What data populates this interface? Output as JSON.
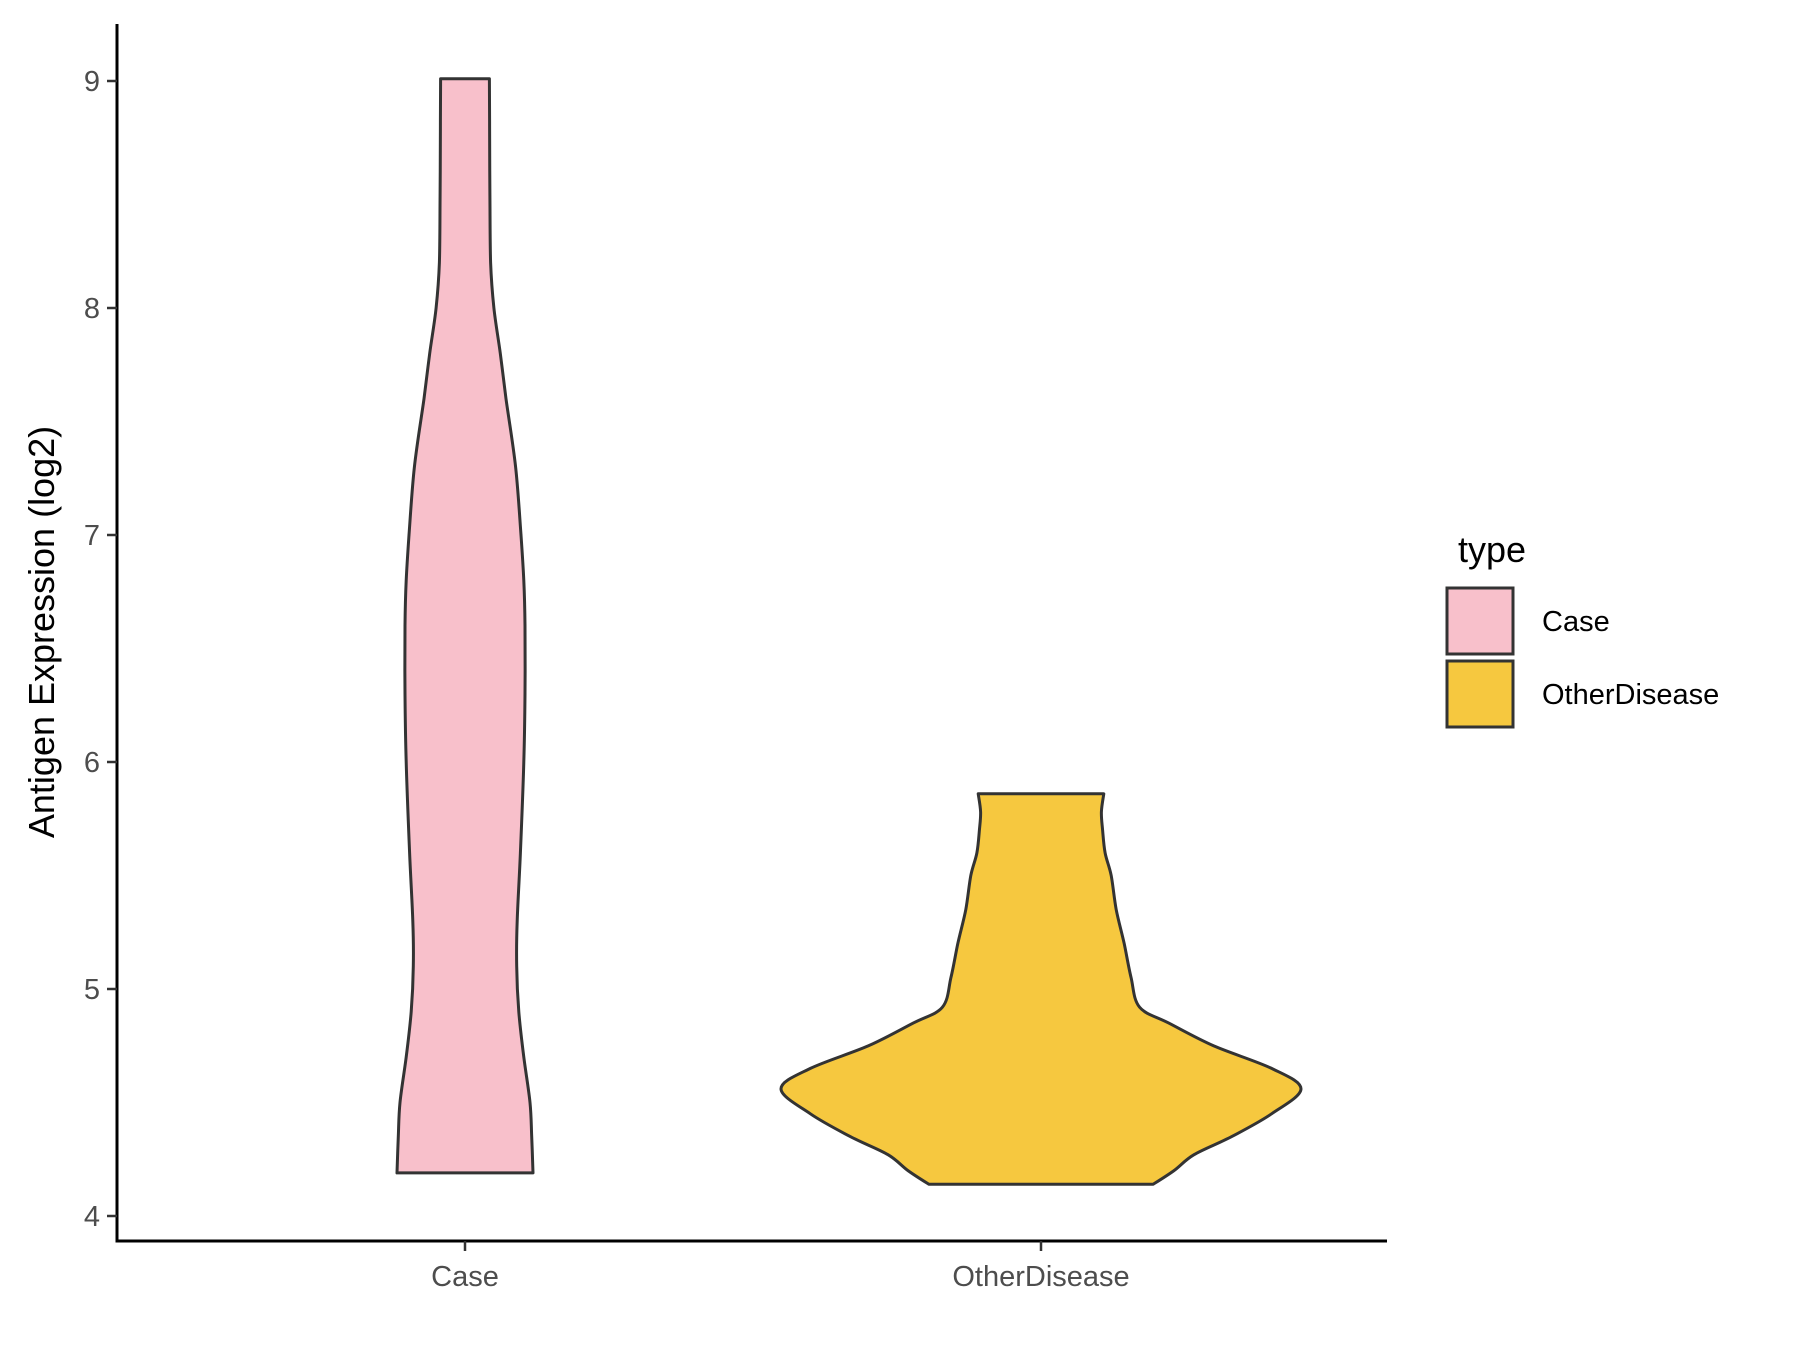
{
  "chart_data": {
    "type": "violin",
    "title": "",
    "xlabel": "",
    "ylabel": "Antigen Expression (log2)",
    "ylim": [
      3.9,
      9.25
    ],
    "yticks": [
      4,
      5,
      6,
      7,
      8,
      9
    ],
    "categories": [
      "Case",
      "OtherDisease"
    ],
    "grid": false,
    "legend": {
      "title": "type",
      "position": "right",
      "entries": [
        {
          "label": "Case",
          "color": "#f8c0cb"
        },
        {
          "label": "OtherDisease",
          "color": "#f6c83f"
        }
      ]
    },
    "series": [
      {
        "name": "Case",
        "color": "#f8c0cb",
        "min": 4.19,
        "max": 9.01,
        "density": [
          [
            4.19,
            0.145
          ],
          [
            4.35,
            0.125
          ],
          [
            4.5,
            0.1
          ],
          [
            4.7,
            0.0
          ],
          [
            4.9,
            -0.09
          ],
          [
            5.1,
            -0.13
          ],
          [
            5.3,
            -0.12
          ],
          [
            5.6,
            -0.06
          ],
          [
            6.0,
            0.0
          ],
          [
            6.3,
            0.02
          ],
          [
            6.6,
            0.02
          ],
          [
            6.8,
            0.0
          ],
          [
            7.0,
            -0.05
          ],
          [
            7.3,
            -0.15
          ],
          [
            7.6,
            -0.36
          ],
          [
            7.8,
            -0.51
          ],
          [
            8.0,
            -0.71
          ],
          [
            8.2,
            -0.83
          ],
          [
            8.5,
            -0.86
          ],
          [
            8.8,
            -0.87
          ],
          [
            9.01,
            -0.88
          ]
        ]
      },
      {
        "name": "OtherDisease",
        "color": "#f6c83f",
        "min": 4.14,
        "max": 5.86,
        "density": [
          [
            4.14,
            0.65
          ],
          [
            4.2,
            0.82
          ],
          [
            4.27,
            0.96
          ],
          [
            4.35,
            1.18
          ],
          [
            4.45,
            1.37
          ],
          [
            4.56,
            1.49
          ],
          [
            4.65,
            1.37
          ],
          [
            4.75,
            1.08
          ],
          [
            4.85,
            0.78
          ],
          [
            4.92,
            0.52
          ],
          [
            5.05,
            0.43
          ],
          [
            5.2,
            0.35
          ],
          [
            5.35,
            0.25
          ],
          [
            5.5,
            0.18
          ],
          [
            5.6,
            0.09
          ],
          [
            5.7,
            0.05
          ],
          [
            5.78,
            0.03
          ],
          [
            5.86,
            0.07
          ]
        ]
      }
    ]
  }
}
